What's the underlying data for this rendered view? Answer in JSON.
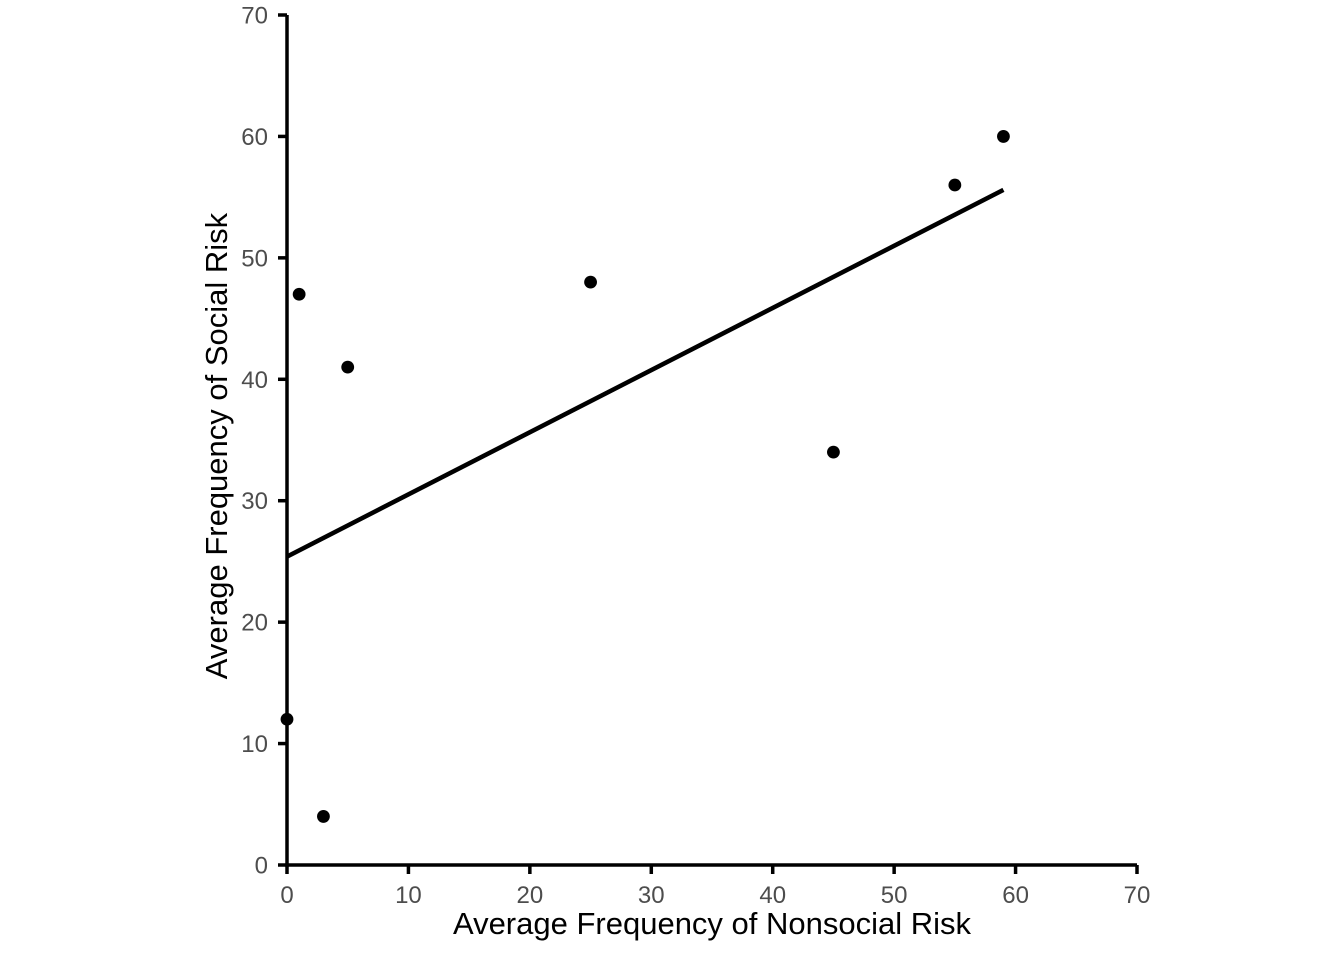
{
  "chart_data": {
    "type": "scatter",
    "xlabel": "Average Frequency of Nonsocial Risk",
    "ylabel": "Average Frequency of Social Risk",
    "xlim": [
      0,
      70
    ],
    "ylim": [
      0,
      70
    ],
    "x_ticks": [
      0,
      10,
      20,
      30,
      40,
      50,
      60,
      70
    ],
    "y_ticks": [
      0,
      10,
      20,
      30,
      40,
      50,
      60,
      70
    ],
    "grid": false,
    "legend": false,
    "points": [
      {
        "x": 0,
        "y": 12
      },
      {
        "x": 1,
        "y": 47
      },
      {
        "x": 3,
        "y": 4
      },
      {
        "x": 5,
        "y": 41
      },
      {
        "x": 25,
        "y": 48
      },
      {
        "x": 45,
        "y": 34
      },
      {
        "x": 55,
        "y": 56
      },
      {
        "x": 59,
        "y": 60
      }
    ],
    "trend_line": {
      "kind": "linear-fit",
      "x_start": 0,
      "y_start": 25.4,
      "x_end": 59,
      "y_end": 55.6
    },
    "colors": {
      "point": "#000000",
      "trend_line": "#000000",
      "axis": "#000000",
      "tick_label": "#4D4D4D",
      "axis_title": "#000000",
      "background": "#FFFFFF"
    }
  }
}
